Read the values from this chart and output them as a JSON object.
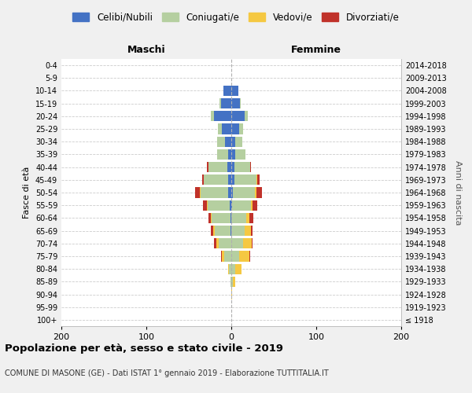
{
  "age_groups": [
    "100+",
    "95-99",
    "90-94",
    "85-89",
    "80-84",
    "75-79",
    "70-74",
    "65-69",
    "60-64",
    "55-59",
    "50-54",
    "45-49",
    "40-44",
    "35-39",
    "30-34",
    "25-29",
    "20-24",
    "15-19",
    "10-14",
    "5-9",
    "0-4"
  ],
  "birth_years": [
    "≤ 1918",
    "1919-1923",
    "1924-1928",
    "1929-1933",
    "1934-1938",
    "1939-1943",
    "1944-1948",
    "1949-1953",
    "1954-1958",
    "1959-1963",
    "1964-1968",
    "1969-1973",
    "1974-1978",
    "1979-1983",
    "1984-1988",
    "1989-1993",
    "1994-1998",
    "1999-2003",
    "2004-2008",
    "2009-2013",
    "2014-2018"
  ],
  "colors": {
    "celibe": "#4472c4",
    "coniugato": "#b5cfa0",
    "vedovo": "#f5c842",
    "divorziato": "#c0322a"
  },
  "males": {
    "celibe": [
      0,
      0,
      0,
      0,
      0,
      0,
      0,
      1,
      1,
      2,
      4,
      4,
      5,
      4,
      7,
      11,
      20,
      12,
      9,
      0,
      0
    ],
    "coniugato": [
      0,
      0,
      0,
      1,
      3,
      8,
      15,
      18,
      22,
      26,
      32,
      28,
      22,
      13,
      10,
      5,
      4,
      2,
      0,
      0,
      0
    ],
    "vedovo": [
      0,
      0,
      0,
      0,
      1,
      3,
      3,
      2,
      1,
      1,
      1,
      0,
      0,
      0,
      0,
      0,
      0,
      0,
      0,
      0,
      0
    ],
    "divorziato": [
      0,
      0,
      0,
      0,
      0,
      1,
      2,
      3,
      3,
      4,
      6,
      2,
      2,
      0,
      0,
      0,
      0,
      0,
      0,
      0,
      0
    ]
  },
  "females": {
    "celibe": [
      0,
      0,
      0,
      0,
      0,
      0,
      0,
      0,
      0,
      1,
      2,
      4,
      4,
      5,
      5,
      9,
      16,
      10,
      8,
      0,
      0
    ],
    "coniugato": [
      0,
      0,
      0,
      2,
      5,
      9,
      14,
      16,
      18,
      22,
      26,
      26,
      18,
      12,
      8,
      5,
      3,
      1,
      0,
      0,
      0
    ],
    "vedovo": [
      0,
      0,
      1,
      3,
      7,
      12,
      10,
      7,
      3,
      2,
      2,
      1,
      0,
      0,
      0,
      0,
      0,
      0,
      0,
      0,
      0
    ],
    "divorziato": [
      0,
      0,
      0,
      0,
      0,
      1,
      1,
      2,
      5,
      6,
      6,
      2,
      1,
      0,
      0,
      0,
      0,
      0,
      0,
      0,
      0
    ]
  },
  "xlim": 200,
  "title": "Popolazione per età, sesso e stato civile - 2019",
  "subtitle": "COMUNE DI MASONE (GE) - Dati ISTAT 1° gennaio 2019 - Elaborazione TUTTITALIA.IT",
  "xlabel_left": "Maschi",
  "xlabel_right": "Femmine",
  "ylabel": "Fasce di età",
  "ylabel_right": "Anni di nascita",
  "legend_labels": [
    "Celibi/Nubili",
    "Coniugati/e",
    "Vedovi/e",
    "Divorziati/e"
  ],
  "bg_color": "#f0f0f0",
  "plot_bg": "#ffffff"
}
